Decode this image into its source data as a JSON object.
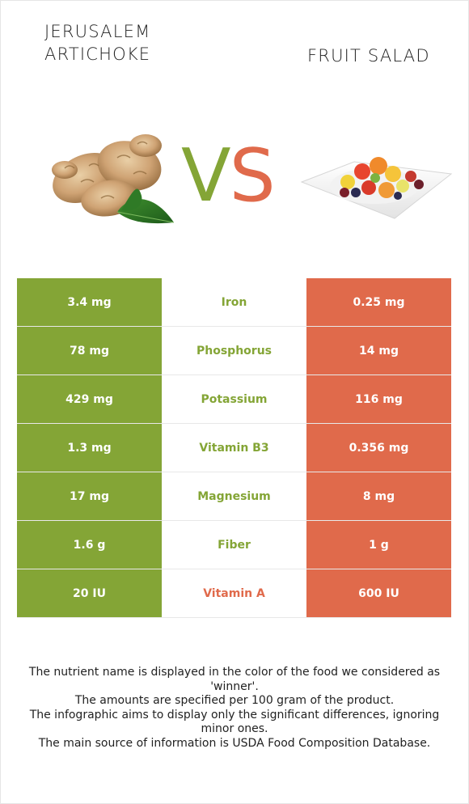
{
  "left_food": {
    "name": "JERUSALEM ARTICHOKE",
    "color": "#84a536"
  },
  "right_food": {
    "name": "FRUIT SALAD",
    "color": "#e06a4b"
  },
  "vs": {
    "v": "V",
    "s": "S"
  },
  "rows": [
    {
      "left": "3.4 mg",
      "nutrient": "Iron",
      "right": "0.25 mg",
      "winner": "left"
    },
    {
      "left": "78 mg",
      "nutrient": "Phosphorus",
      "right": "14 mg",
      "winner": "left"
    },
    {
      "left": "429 mg",
      "nutrient": "Potassium",
      "right": "116 mg",
      "winner": "left"
    },
    {
      "left": "1.3 mg",
      "nutrient": "Vitamin B3",
      "right": "0.356 mg",
      "winner": "left"
    },
    {
      "left": "17 mg",
      "nutrient": "Magnesium",
      "right": "8 mg",
      "winner": "left"
    },
    {
      "left": "1.6 g",
      "nutrient": "Fiber",
      "right": "1 g",
      "winner": "left"
    },
    {
      "left": "20 IU",
      "nutrient": "Vitamin A",
      "right": "600 IU",
      "winner": "right"
    }
  ],
  "footer": [
    "The nutrient name is displayed in the color of the food we considered as 'winner'.",
    "The amounts are specified per 100 gram of the product.",
    "The infographic aims to display only the significant differences, ignoring minor ones.",
    "The main source of information is USDA Food Composition Database."
  ]
}
